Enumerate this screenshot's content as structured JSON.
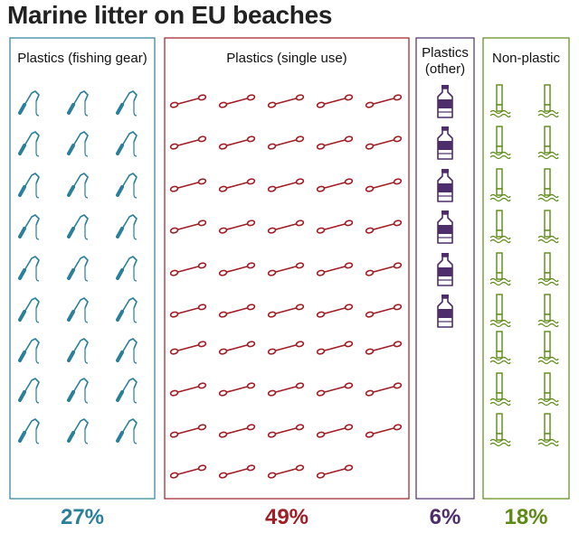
{
  "chart_data": {
    "type": "pictogram",
    "title": "Marine litter on EU beaches",
    "categories": [
      "Plastics (fishing gear)",
      "Plastics (single use)",
      "Plastics (other)",
      "Non-plastic"
    ],
    "values": [
      27,
      49,
      6,
      18
    ],
    "value_labels": [
      "27%",
      "49%",
      "6%",
      "18%"
    ],
    "icons": [
      "fishing-line-icon",
      "cotton-bud-icon",
      "bottle-icon",
      "cigarette-butt-icon"
    ],
    "colors": [
      "#2a7f9a",
      "#a01d23",
      "#4e2d6b",
      "#5c8a14"
    ]
  }
}
